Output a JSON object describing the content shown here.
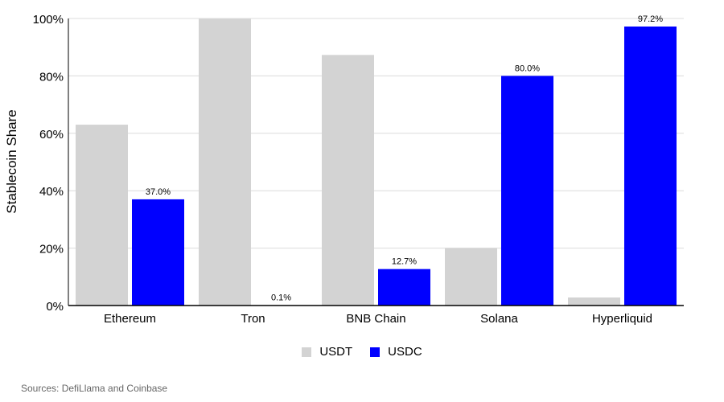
{
  "chart_data": {
    "type": "bar",
    "title": "",
    "xlabel": "",
    "ylabel": "Stablecoin Share",
    "categories": [
      "Ethereum",
      "Tron",
      "BNB Chain",
      "Solana",
      "Hyperliquid"
    ],
    "series": [
      {
        "name": "USDT",
        "color": "#d3d3d3",
        "values": [
          63.0,
          99.9,
          87.3,
          20.0,
          2.8
        ],
        "show_labels": false
      },
      {
        "name": "USDC",
        "color": "#0000ff",
        "values": [
          37.0,
          0.1,
          12.7,
          80.0,
          97.2
        ],
        "show_labels": true
      }
    ],
    "data_labels": [
      "37.0%",
      "0.1%",
      "12.7%",
      "80.0%",
      "97.2%"
    ],
    "ylim": [
      0,
      100
    ],
    "yticks": [
      "0%",
      "20%",
      "40%",
      "60%",
      "80%",
      "100%"
    ],
    "grid": true,
    "legend_position": "bottom-center"
  },
  "source_note": "Sources: DefiLlama and Coinbase"
}
